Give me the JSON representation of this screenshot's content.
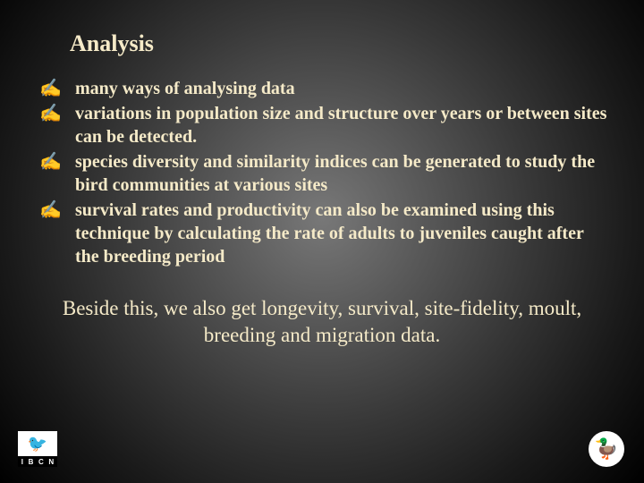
{
  "colors": {
    "text": "#f5eac8",
    "bg_center": "#787878",
    "bg_edge": "#000000"
  },
  "title": "Analysis",
  "bullet_glyph": "✍",
  "bullets": [
    "many ways of analysing data",
    "variations in population size and structure over years or between sites can be detected.",
    "species diversity and similarity indices can be generated to study the bird communities at various sites",
    "survival rates and productivity can also be examined using this technique by calculating the rate of adults to juveniles caught after the breeding period"
  ],
  "footer": "Beside this, we also get longevity, survival, site-fidelity, moult, breeding and migration data.",
  "logo_left": {
    "letters": [
      "I",
      "B",
      "C",
      "N"
    ],
    "icon": "🐦"
  },
  "logo_right": {
    "icon": "🦆"
  }
}
